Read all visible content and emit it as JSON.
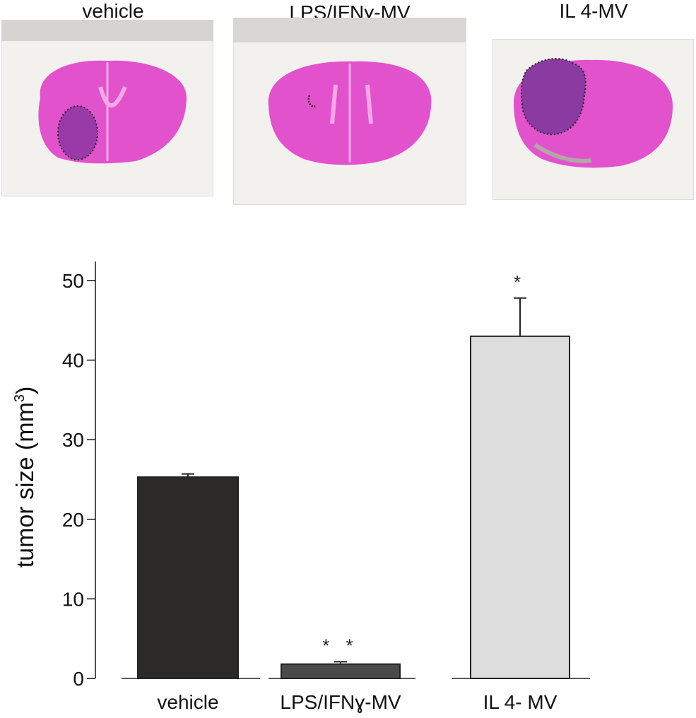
{
  "panels": [
    {
      "title": "vehicle"
    },
    {
      "title": "LPS/IFNɣ-MV"
    },
    {
      "title": "IL 4-MV"
    }
  ],
  "colors": {
    "stain": "#e040c8",
    "stain_dark": "#c02ab0",
    "tumor": "#8a3aa0",
    "background_photo": "#f2f1ee"
  },
  "chart_data": {
    "type": "bar",
    "categories": [
      "vehicle",
      "LPS/IFNɣ-MV",
      "IL 4- MV"
    ],
    "values": [
      25.3,
      1.8,
      43.0
    ],
    "errors": [
      0.4,
      0.3,
      4.8
    ],
    "significance": [
      "",
      "* *",
      "*"
    ],
    "bar_colors": [
      "#2b2a28",
      "#4a4a4a",
      "#dcdddc"
    ],
    "ylabel": "tumor size (mm",
    "ylabel_superscript": "3",
    "ylabel_close": ")",
    "yticks": [
      0,
      10,
      20,
      30,
      40,
      50
    ],
    "ylim": [
      0,
      52
    ],
    "grid": false,
    "legend": "none"
  }
}
